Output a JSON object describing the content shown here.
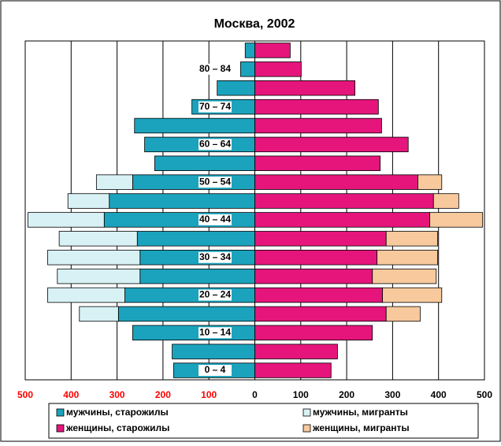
{
  "chart_data": {
    "type": "pyramid",
    "title": "Москва, 2002",
    "categories": [
      "0 – 4",
      null,
      "10 – 14",
      null,
      "20 – 24",
      null,
      "30 – 34",
      null,
      "40 – 44",
      null,
      "50 – 54",
      null,
      "60 – 64",
      null,
      "70 – 74",
      null,
      "80 – 84",
      null
    ],
    "series": [
      {
        "name": "мужчины, старожилы",
        "color": "#1ba3bd",
        "values": [
          -177,
          -180,
          -266,
          -297,
          -283,
          -250,
          -250,
          -256,
          -328,
          -317,
          -266,
          -218,
          -240,
          -262,
          -137,
          -82,
          -31,
          -21
        ]
      },
      {
        "name": "мужчины, мигранты",
        "color": "#d8f1f4",
        "values": [
          null,
          null,
          null,
          -85,
          -168,
          -180,
          -201,
          -170,
          -166,
          -90,
          -79,
          null,
          null,
          null,
          null,
          null,
          null,
          null
        ]
      },
      {
        "name": "женщины, старожилы",
        "color": "#e5157b",
        "values": [
          166,
          180,
          256,
          286,
          278,
          256,
          266,
          286,
          381,
          389,
          355,
          273,
          334,
          276,
          269,
          218,
          101,
          77
        ]
      },
      {
        "name": "женщины, мигранты",
        "color": "#f7c99c",
        "values": [
          null,
          null,
          null,
          74,
          129,
          139,
          132,
          112,
          115,
          55,
          52,
          null,
          null,
          null,
          null,
          null,
          null,
          null
        ]
      }
    ],
    "xlim": [
      -500,
      500
    ],
    "xticks": [
      {
        "value": -500,
        "label": "500"
      },
      {
        "value": -400,
        "label": "400"
      },
      {
        "value": -300,
        "label": "300"
      },
      {
        "value": -200,
        "label": "200"
      },
      {
        "value": -100,
        "label": "100"
      },
      0,
      100,
      200,
      300,
      400,
      500
    ],
    "negative_tick_color": "#ff0000",
    "grid": true
  }
}
